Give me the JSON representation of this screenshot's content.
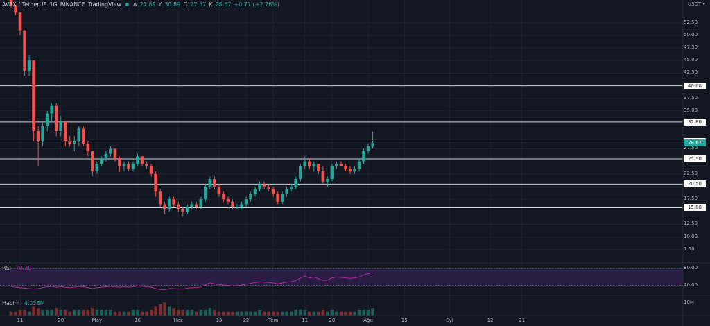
{
  "legend": {
    "symbol": "AVAX / TetherUS",
    "interval": "1G",
    "exchange": "BINANCE",
    "source": "TradingView",
    "o_label": "A",
    "o_value": "27.89",
    "h_label": "Y",
    "h_value": "30.89",
    "l_label": "D",
    "l_value": "27.57",
    "c_label": "K",
    "c_value": "28.67",
    "change": "+0.77 (+2.76%)"
  },
  "price_axis": {
    "unit": "USDT",
    "ticks": [
      "52.50",
      "50.00",
      "47.50",
      "45.00",
      "42.50",
      "37.50",
      "35.00",
      "27.50",
      "22.50",
      "17.50",
      "12.50",
      "10.00",
      "7.50"
    ],
    "tick_values": [
      52.5,
      50,
      47.5,
      45,
      42.5,
      37.5,
      35,
      27.5,
      22.5,
      17.5,
      12.5,
      10,
      7.5
    ]
  },
  "horizontal_levels": [
    {
      "label": "40.00",
      "value": 40.0
    },
    {
      "label": "32.80",
      "value": 32.8
    },
    {
      "label": "29.00",
      "value": 29.0
    },
    {
      "label": "25.50",
      "value": 25.5
    },
    {
      "label": "20.50",
      "value": 20.5
    },
    {
      "label": "15.80",
      "value": 15.8
    }
  ],
  "current_price": {
    "label": "28.67",
    "value": 28.67
  },
  "time_axis": {
    "labels": [
      "11",
      "20",
      "May",
      "16",
      "Haz",
      "13",
      "22",
      "Tem",
      "11",
      "20",
      "Ağu",
      "15",
      "Eyl",
      "12",
      "21"
    ],
    "positions": [
      2,
      11,
      19,
      28,
      37,
      46,
      52,
      58,
      65,
      71,
      79,
      87,
      97,
      106,
      113
    ]
  },
  "rsi": {
    "label": "RSI",
    "value": "70.30",
    "ticks": [
      "80.00",
      "40.00"
    ],
    "tick_values": [
      80,
      40
    ]
  },
  "volume": {
    "label": "Hacim",
    "value": "4.328M",
    "tick": "10M"
  },
  "colors": {
    "up": "#26a69a",
    "down": "#ef5350",
    "bg": "#131722",
    "rsi_line": "#b02ca5",
    "rsi_band": "#2a1d44"
  },
  "chart_data": {
    "type": "candlestick",
    "x_start_label": "11",
    "candles": [
      [
        58,
        58,
        55.5,
        56
      ],
      [
        56,
        56,
        54,
        54.5
      ],
      [
        54.5,
        54.5,
        50,
        51
      ],
      [
        51,
        51,
        42,
        43
      ],
      [
        43,
        46,
        42,
        45
      ],
      [
        45,
        45,
        29,
        31
      ],
      [
        31,
        32,
        24,
        29
      ],
      [
        29,
        33,
        28,
        32
      ],
      [
        32,
        35,
        31,
        34.5
      ],
      [
        34.5,
        36.5,
        33,
        36
      ],
      [
        36,
        36.5,
        30,
        31
      ],
      [
        31,
        34,
        30,
        33
      ],
      [
        33,
        33,
        28,
        29
      ],
      [
        29,
        30,
        28,
        28.5
      ],
      [
        28.5,
        30,
        27,
        29
      ],
      [
        29,
        32,
        28,
        31.5
      ],
      [
        31.5,
        32,
        28,
        28.5
      ],
      [
        28.5,
        29,
        26,
        27
      ],
      [
        27,
        27,
        22,
        23
      ],
      [
        23,
        25,
        22.5,
        24.5
      ],
      [
        24.5,
        26,
        24,
        25.5
      ],
      [
        25.5,
        27,
        25,
        26.5
      ],
      [
        26.5,
        28,
        26,
        27.5
      ],
      [
        27.5,
        27.5,
        25,
        25.5
      ],
      [
        25.5,
        26,
        23,
        24
      ],
      [
        24,
        25,
        23,
        24.5
      ],
      [
        24.5,
        25,
        23,
        23.5
      ],
      [
        23.5,
        25,
        23,
        24.5
      ],
      [
        24.5,
        26.5,
        24,
        26
      ],
      [
        26,
        26,
        24,
        24.5
      ],
      [
        24.5,
        25,
        23.5,
        24
      ],
      [
        24,
        24.5,
        22,
        22.5
      ],
      [
        22.5,
        23,
        18,
        19
      ],
      [
        19,
        19.5,
        16,
        16.5
      ],
      [
        16.5,
        17,
        14.5,
        15.5
      ],
      [
        15.5,
        18,
        15,
        17.5
      ],
      [
        17.5,
        18,
        16,
        16.5
      ],
      [
        16.5,
        17,
        15,
        15.5
      ],
      [
        15.5,
        16,
        14,
        15
      ],
      [
        15,
        16.5,
        14.5,
        16
      ],
      [
        16,
        17,
        15.5,
        16.5
      ],
      [
        16.5,
        17,
        15.5,
        16
      ],
      [
        16,
        18,
        15.5,
        17.5
      ],
      [
        17.5,
        20.5,
        17,
        20
      ],
      [
        20,
        22,
        19.5,
        21.5
      ],
      [
        21.5,
        22,
        19.5,
        20
      ],
      [
        20,
        20.5,
        18,
        18.5
      ],
      [
        18.5,
        19,
        17,
        17.5
      ],
      [
        17.5,
        18,
        16.5,
        17
      ],
      [
        17,
        17.5,
        15.5,
        16
      ],
      [
        16,
        16.5,
        15.5,
        16
      ],
      [
        16,
        17,
        15.5,
        16.5
      ],
      [
        16.5,
        18,
        16,
        17.5
      ],
      [
        17.5,
        19,
        17,
        18.5
      ],
      [
        18.5,
        20,
        18,
        19.5
      ],
      [
        19.5,
        21,
        19,
        20.5
      ],
      [
        20.5,
        21,
        19.5,
        20
      ],
      [
        20,
        20.5,
        19,
        19.5
      ],
      [
        19.5,
        20,
        18,
        18.5
      ],
      [
        18.5,
        19,
        16.5,
        17
      ],
      [
        17,
        19,
        16.5,
        18.5
      ],
      [
        18.5,
        20,
        18,
        19.5
      ],
      [
        19.5,
        20.5,
        19,
        20
      ],
      [
        20,
        22,
        19.5,
        21.5
      ],
      [
        21.5,
        24.5,
        21,
        24
      ],
      [
        24,
        26,
        23.5,
        25
      ],
      [
        25,
        25.5,
        23.5,
        24
      ],
      [
        24,
        25,
        23,
        24.5
      ],
      [
        24.5,
        24.5,
        22.5,
        23
      ],
      [
        23,
        24,
        20.5,
        21
      ],
      [
        21,
        22,
        20,
        21.5
      ],
      [
        21.5,
        24.5,
        21,
        24
      ],
      [
        24,
        25,
        23.5,
        24.5
      ],
      [
        24.5,
        25,
        24,
        24
      ],
      [
        24,
        24.5,
        23,
        23.5
      ],
      [
        23.5,
        24,
        22.5,
        23
      ],
      [
        23,
        24,
        22.5,
        23.5
      ],
      [
        23.5,
        25.5,
        23,
        25
      ],
      [
        25,
        27.5,
        24.5,
        27
      ],
      [
        27,
        28.5,
        26.5,
        28
      ],
      [
        27.89,
        30.89,
        27.57,
        28.67
      ]
    ],
    "volume_values": [
      2,
      2,
      3,
      3,
      2,
      5,
      4,
      3,
      3,
      3,
      4,
      3,
      3,
      2,
      3,
      3,
      3,
      3,
      4,
      3,
      3,
      3,
      3,
      2,
      2,
      2,
      2,
      3,
      3,
      2,
      2,
      3,
      5,
      6,
      7,
      5,
      4,
      3,
      3,
      3,
      3,
      2,
      3,
      3,
      4,
      3,
      2,
      2,
      2,
      2,
      2,
      2,
      2,
      2,
      2,
      3,
      2,
      2,
      2,
      2,
      2,
      2,
      2,
      3,
      3,
      3,
      2,
      2,
      2,
      3,
      2,
      3,
      2,
      2,
      2,
      2,
      2,
      3,
      3,
      3,
      4
    ],
    "rsi_values": [
      38,
      36,
      35,
      34,
      33,
      32,
      33,
      35,
      37,
      38,
      36,
      37,
      36,
      35,
      36,
      38,
      37,
      35,
      33,
      35,
      36,
      37,
      38,
      37,
      36,
      37,
      36,
      37,
      39,
      38,
      37,
      36,
      33,
      31,
      30,
      33,
      33,
      32,
      32,
      34,
      35,
      35,
      37,
      42,
      46,
      44,
      42,
      41,
      40,
      39,
      40,
      41,
      43,
      45,
      47,
      49,
      48,
      47,
      46,
      44,
      46,
      48,
      49,
      52,
      58,
      62,
      58,
      60,
      56,
      52,
      53,
      58,
      60,
      59,
      58,
      57,
      58,
      60,
      65,
      68,
      70.3
    ],
    "ylim": [
      5,
      57
    ]
  }
}
